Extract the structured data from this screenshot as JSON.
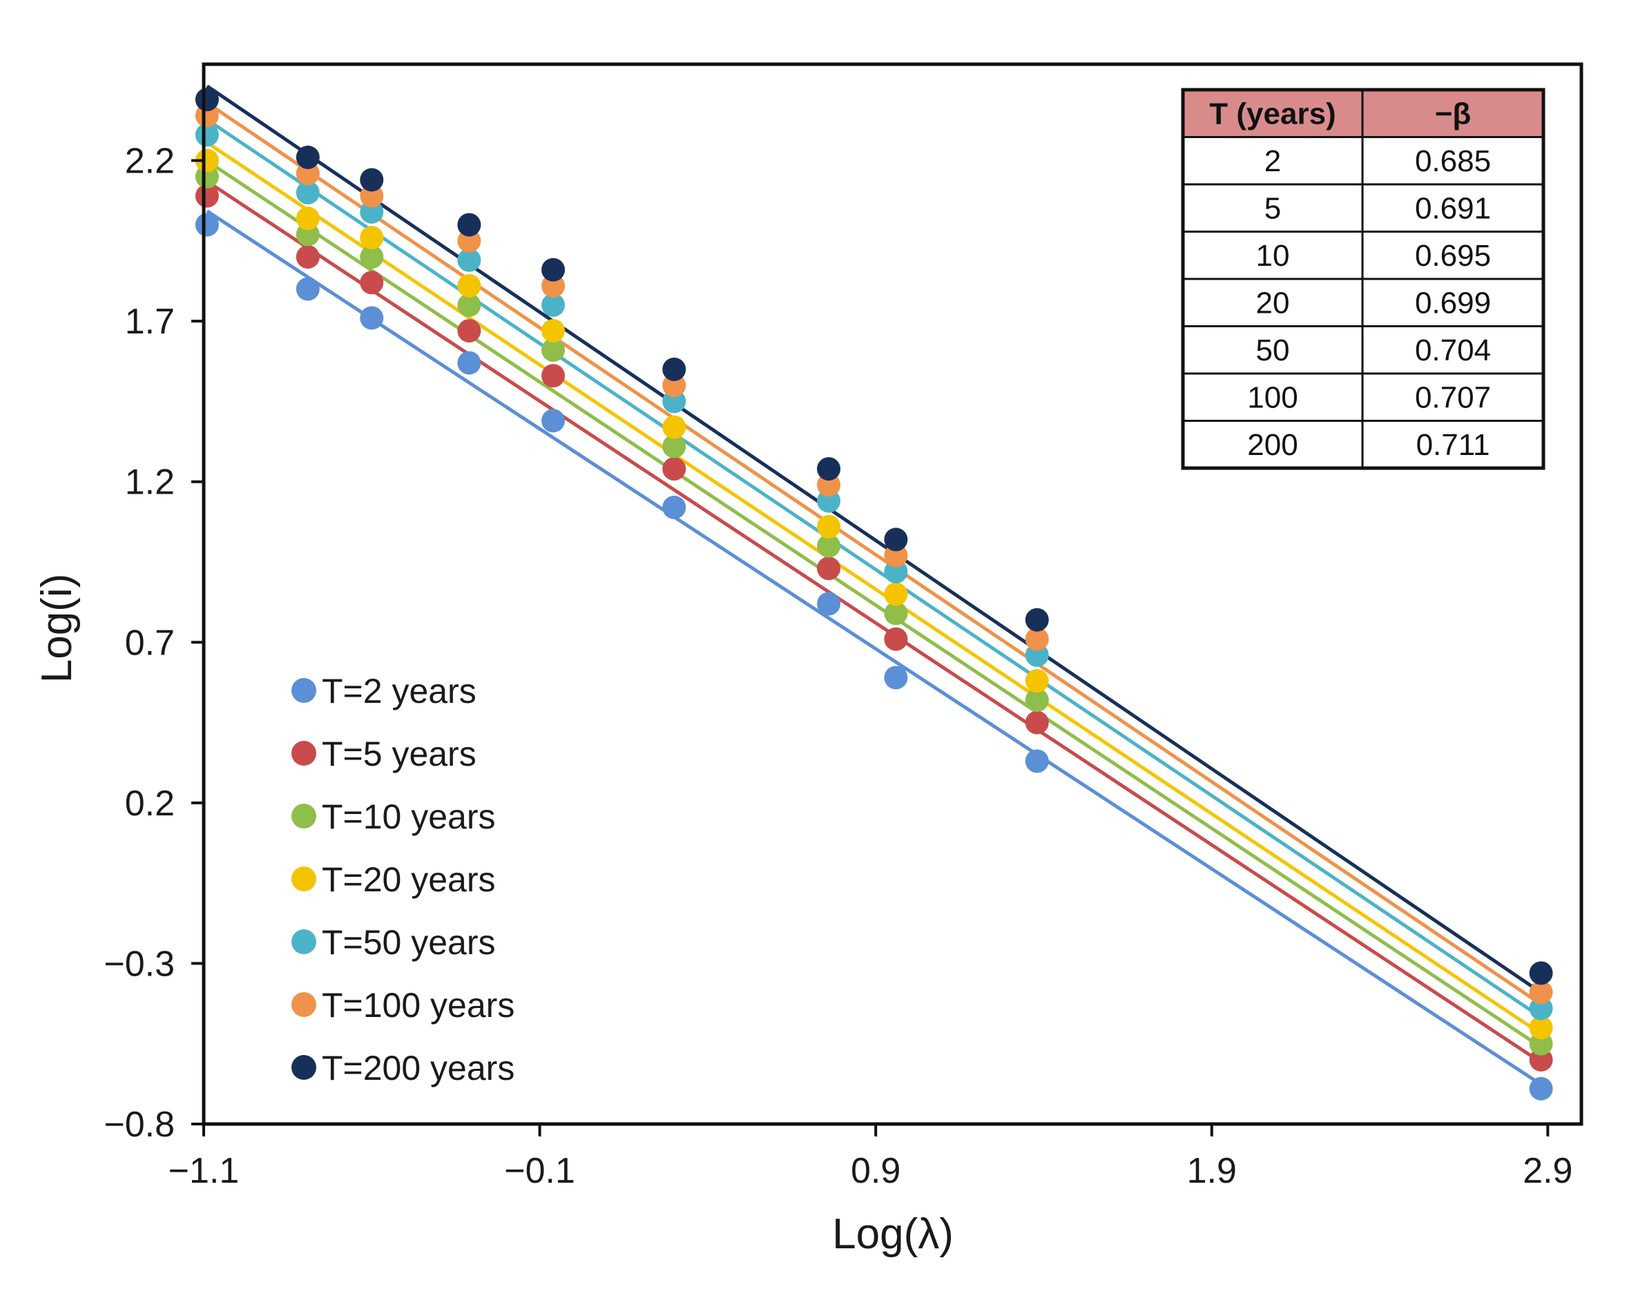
{
  "chart_data": {
    "type": "scatter",
    "xlabel": "Log(λ)",
    "ylabel": "Log(i)",
    "xlim": [
      -1.1,
      3.0
    ],
    "ylim": [
      -0.8,
      2.5
    ],
    "xticks": [
      -1.1,
      -0.1,
      0.9,
      1.9,
      2.9
    ],
    "xtick_labels": [
      "−1.1",
      "−0.1",
      "0.9",
      "1.9",
      "2.9"
    ],
    "yticks": [
      -0.8,
      -0.3,
      0.2,
      0.7,
      1.2,
      1.7,
      2.2
    ],
    "ytick_labels": [
      "−0.8",
      "−0.3",
      "0.2",
      "0.7",
      "1.2",
      "1.7",
      "2.2"
    ],
    "x": [
      -1.09,
      -0.79,
      -0.6,
      -0.31,
      -0.06,
      0.3,
      0.76,
      0.96,
      1.38,
      2.88
    ],
    "series": [
      {
        "name": "T=2 years",
        "color": "#5b8fd6",
        "values": [
          2.0,
          1.8,
          1.71,
          1.57,
          1.39,
          1.12,
          0.82,
          0.59,
          0.33,
          -0.69
        ],
        "fit": {
          "slope": -0.685,
          "intercept": 1.296
        }
      },
      {
        "name": "T=5 years",
        "color": "#c94b4b",
        "values": [
          2.09,
          1.9,
          1.82,
          1.67,
          1.53,
          1.24,
          0.93,
          0.71,
          0.45,
          -0.6
        ],
        "fit": {
          "slope": -0.691,
          "intercept": 1.382
        }
      },
      {
        "name": "T=10 years",
        "color": "#8fbe4a",
        "values": [
          2.15,
          1.97,
          1.9,
          1.75,
          1.61,
          1.31,
          1.0,
          0.79,
          0.52,
          -0.55
        ],
        "fit": {
          "slope": -0.695,
          "intercept": 1.441
        }
      },
      {
        "name": "T=20 years",
        "color": "#f5c400",
        "values": [
          2.2,
          2.02,
          1.96,
          1.81,
          1.67,
          1.37,
          1.06,
          0.85,
          0.58,
          -0.5
        ],
        "fit": {
          "slope": -0.699,
          "intercept": 1.494
        }
      },
      {
        "name": "T=50 years",
        "color": "#4bb3c8",
        "values": [
          2.28,
          2.1,
          2.04,
          1.89,
          1.75,
          1.45,
          1.14,
          0.92,
          0.66,
          -0.44
        ],
        "fit": {
          "slope": -0.704,
          "intercept": 1.56
        }
      },
      {
        "name": "T=100 years",
        "color": "#f0924a",
        "values": [
          2.34,
          2.16,
          2.09,
          1.95,
          1.81,
          1.5,
          1.19,
          0.97,
          0.71,
          -0.39
        ],
        "fit": {
          "slope": -0.707,
          "intercept": 1.609
        }
      },
      {
        "name": "T=200 years",
        "color": "#17305a",
        "values": [
          2.39,
          2.21,
          2.14,
          2.0,
          1.86,
          1.55,
          1.24,
          1.02,
          0.77,
          -0.33
        ],
        "fit": {
          "slope": -0.711,
          "intercept": 1.657
        }
      }
    ],
    "legend_position": "bottom-left",
    "inset_table": {
      "position": "top-right",
      "headers": [
        "T (years)",
        "−β"
      ],
      "rows": [
        [
          "2",
          "0.685"
        ],
        [
          "5",
          "0.691"
        ],
        [
          "10",
          "0.695"
        ],
        [
          "20",
          "0.699"
        ],
        [
          "50",
          "0.704"
        ],
        [
          "100",
          "0.707"
        ],
        [
          "200",
          "0.711"
        ]
      ],
      "header_color": "#d98b8b"
    }
  }
}
